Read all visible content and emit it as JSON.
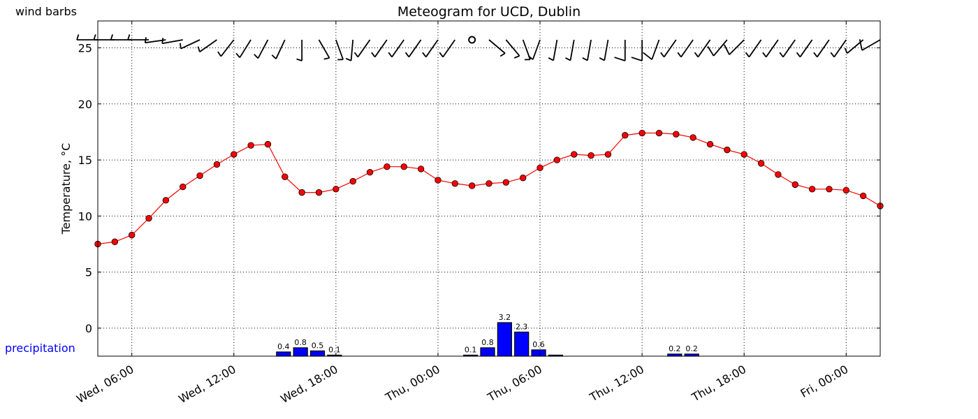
{
  "chart_data": {
    "type": "line",
    "title": "Meteogram for UCD, Dublin",
    "ylabel": "Temperature, °C",
    "xlabel": "",
    "ylim": [
      -2.5,
      27.4
    ],
    "grid": true,
    "yticks": [
      0,
      5,
      10,
      15,
      20,
      25
    ],
    "start_hour": "Wed 04:00",
    "xticks": [
      {
        "hour": 2,
        "label": "Wed, 06:00"
      },
      {
        "hour": 8,
        "label": "Wed, 12:00"
      },
      {
        "hour": 14,
        "label": "Wed, 18:00"
      },
      {
        "hour": 20,
        "label": "Thu, 00:00"
      },
      {
        "hour": 26,
        "label": "Thu, 06:00"
      },
      {
        "hour": 32,
        "label": "Thu, 12:00"
      },
      {
        "hour": 38,
        "label": "Thu, 18:00"
      },
      {
        "hour": 44,
        "label": "Fri, 00:00"
      }
    ],
    "temperature": {
      "name": "Temperature",
      "color": "#ff0000",
      "values": [
        7.5,
        7.7,
        8.3,
        9.8,
        11.4,
        12.6,
        13.6,
        14.6,
        15.5,
        16.3,
        16.4,
        13.5,
        12.1,
        12.1,
        12.4,
        13.1,
        13.9,
        14.4,
        14.4,
        14.2,
        13.2,
        12.9,
        12.7,
        12.9,
        13.0,
        13.4,
        14.3,
        15.0,
        15.5,
        15.4,
        15.5,
        17.2,
        17.4,
        17.4,
        17.3,
        17.0,
        16.4,
        15.9,
        15.5,
        14.7,
        13.7,
        12.8,
        12.4,
        12.4,
        12.3,
        11.8,
        10.9
      ]
    },
    "precipitation": {
      "name": "precipitation",
      "label": "precipitation",
      "color": "#0000ff",
      "unit": "mm",
      "values": {
        "11": 0.4,
        "12": 0.8,
        "13": 0.5,
        "14": 0.1,
        "22": 0.1,
        "23": 0.8,
        "24": 3.2,
        "25": 2.3,
        "26": 0.6,
        "27": 0.0,
        "34": 0.2,
        "35": 0.2
      },
      "labels": {
        "11": "0.4",
        "12": "0.8",
        "13": "0.5",
        "14": "0.1",
        "22": "0.1",
        "23": "0.8",
        "24": "3.2",
        "25": "2.3",
        "26": "0.6",
        "34": "0.2",
        "35": "0.2"
      }
    },
    "wind_barbs": {
      "label": "wind barbs",
      "direction_deg": [
        270,
        270,
        270,
        270,
        262,
        260,
        245,
        235,
        218,
        212,
        208,
        205,
        180,
        150,
        160,
        185,
        215,
        215,
        215,
        215,
        215,
        215,
        null,
        130,
        140,
        160,
        200,
        190,
        190,
        190,
        190,
        180,
        180,
        200,
        215,
        215,
        215,
        220,
        225,
        215,
        215,
        215,
        215,
        215,
        215,
        230,
        240
      ],
      "speed_kt": [
        5,
        5,
        5,
        5,
        5,
        5,
        5,
        5,
        5,
        5,
        5,
        5,
        5,
        5,
        5,
        5,
        5,
        5,
        5,
        5,
        5,
        5,
        0,
        5,
        5,
        5,
        5,
        5,
        5,
        5,
        5,
        10,
        10,
        10,
        5,
        5,
        5,
        10,
        10,
        5,
        5,
        5,
        5,
        5,
        5,
        5,
        10
      ]
    }
  }
}
